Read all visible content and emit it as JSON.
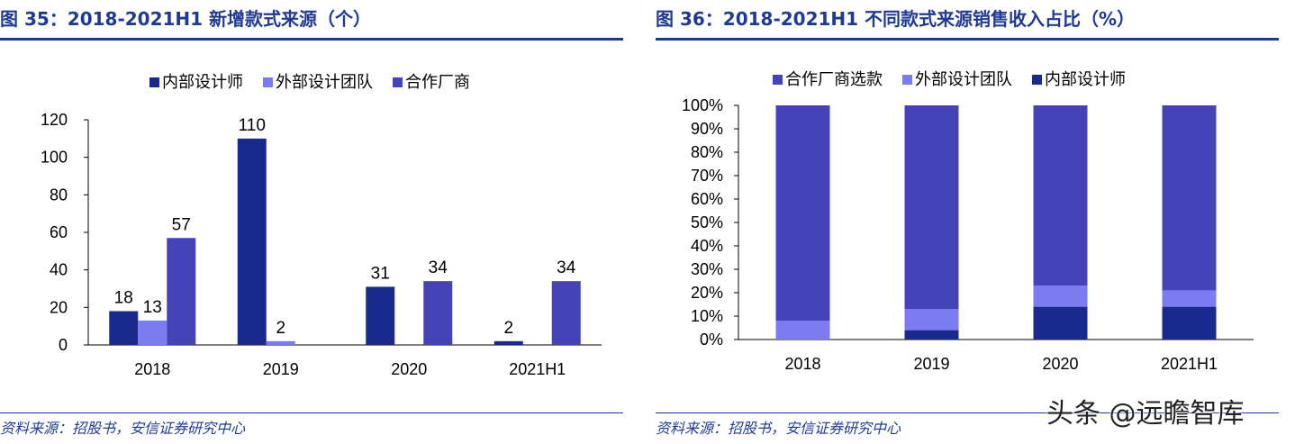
{
  "watermark": "头条 @远瞻智库",
  "colors": {
    "accent": "#1f3a93",
    "internal": "#1a2a8c",
    "external": "#7b7bf2",
    "partner": "#4444b8"
  },
  "left": {
    "title": "图 35：2018-2021H1 新增款式来源（个）",
    "source": "资料来源：招股书，安信证券研究中心"
  },
  "right": {
    "title": "图 36：2018-2021H1 不同款式来源销售收入占比（%）",
    "source": "资料来源：招股书，安信证券研究中心"
  },
  "chart_data": [
    {
      "type": "bar",
      "title": "图 35：2018-2021H1 新增款式来源（个）",
      "categories": [
        "2018",
        "2019",
        "2020",
        "2021H1"
      ],
      "series": [
        {
          "name": "内部设计师",
          "color": "#1a2a8c",
          "values": [
            18,
            110,
            31,
            2
          ]
        },
        {
          "name": "外部设计团队",
          "color": "#7b7bf2",
          "values": [
            13,
            2,
            null,
            null
          ]
        },
        {
          "name": "合作厂商",
          "color": "#4444b8",
          "values": [
            57,
            null,
            34,
            34
          ]
        }
      ],
      "ylim": [
        0,
        120
      ],
      "yticks": [
        0,
        20,
        40,
        60,
        80,
        100,
        120
      ],
      "legend": "top",
      "grid": false,
      "xlabel": "",
      "ylabel": ""
    },
    {
      "type": "bar",
      "stacked": true,
      "title": "图 36：2018-2021H1 不同款式来源销售收入占比（%）",
      "categories": [
        "2018",
        "2019",
        "2020",
        "2021H1"
      ],
      "series": [
        {
          "name": "内部设计师",
          "color": "#1a2a8c",
          "values": [
            0,
            4,
            14,
            14
          ]
        },
        {
          "name": "外部设计团队",
          "color": "#7b7bf2",
          "values": [
            8,
            9,
            9,
            7
          ]
        },
        {
          "name": "合作厂商选款",
          "color": "#4444b8",
          "values": [
            92,
            87,
            77,
            79
          ]
        }
      ],
      "legend_order": [
        "合作厂商选款",
        "外部设计团队",
        "内部设计师"
      ],
      "ylim": [
        0,
        100
      ],
      "yticks": [
        "0%",
        "10%",
        "20%",
        "30%",
        "40%",
        "50%",
        "60%",
        "70%",
        "80%",
        "90%",
        "100%"
      ],
      "legend": "top",
      "grid": false,
      "xlabel": "",
      "ylabel": ""
    }
  ]
}
